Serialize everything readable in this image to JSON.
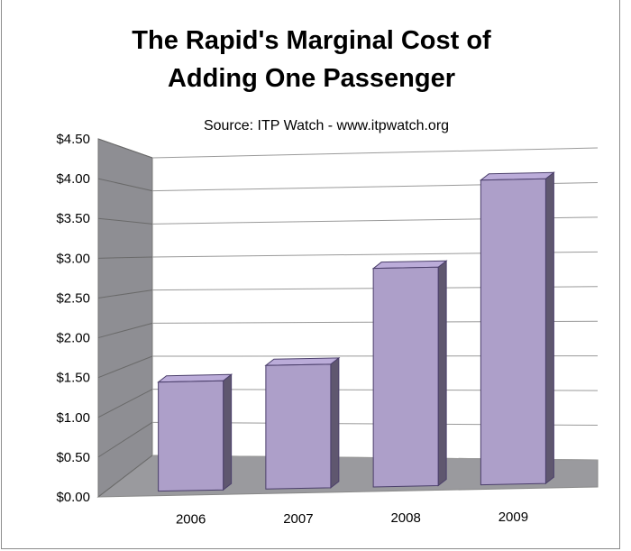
{
  "chart_data": {
    "type": "bar",
    "title_lines": [
      "The Rapid's Marginal Cost of",
      "Adding One Passenger"
    ],
    "subtitle": "Source: ITP Watch - www.itpwatch.org",
    "categories": [
      "2006",
      "2007",
      "2008",
      "2009"
    ],
    "values": [
      1.43,
      1.63,
      2.9,
      4.07
    ],
    "y_ticks": [
      "$0.00",
      "$0.50",
      "$1.00",
      "$1.50",
      "$2.00",
      "$2.50",
      "$3.00",
      "$3.50",
      "$4.00",
      "$4.50"
    ],
    "ylim": [
      0,
      4.5
    ],
    "xlabel": "",
    "ylabel": "",
    "grid": true,
    "legend": "none",
    "bar_color": "#ad9fc9"
  }
}
